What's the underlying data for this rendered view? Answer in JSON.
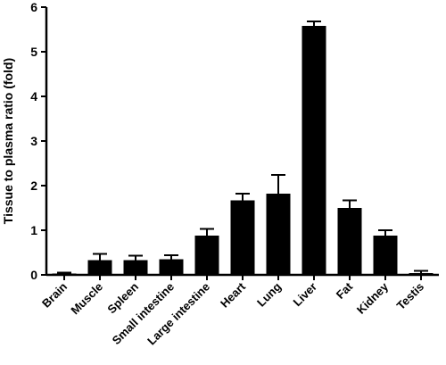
{
  "chart_data": {
    "type": "bar",
    "title": "",
    "xlabel": "",
    "ylabel": "Tissue to plasma ratio (fold)",
    "ylim": [
      0,
      6
    ],
    "yticks": [
      "0",
      "1",
      "2",
      "3",
      "4",
      "5",
      "6"
    ],
    "grid": false,
    "categories": [
      "Brain",
      "Muscle",
      "Spleen",
      "Small intestine",
      "Large intestine",
      "Heart",
      "Lung",
      "Liver",
      "Fat",
      "Kidney",
      "Testis"
    ],
    "values": [
      0.03,
      0.33,
      0.33,
      0.35,
      0.88,
      1.67,
      1.82,
      5.58,
      1.5,
      0.88,
      0.04
    ],
    "errors": [
      0.02,
      0.14,
      0.1,
      0.09,
      0.15,
      0.15,
      0.42,
      0.1,
      0.17,
      0.12,
      0.05
    ],
    "bar_color": "#000000"
  }
}
